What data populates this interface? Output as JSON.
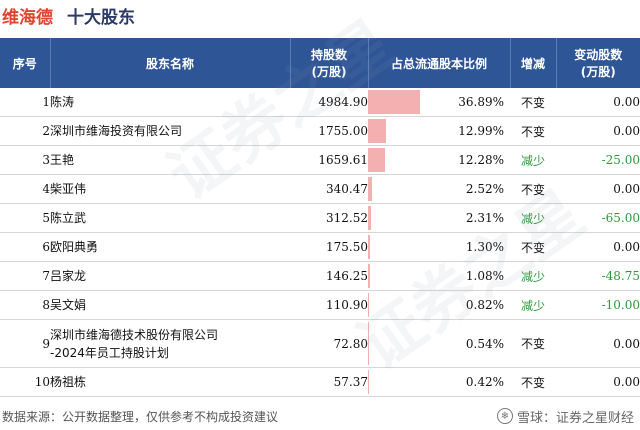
{
  "header": {
    "company": "维海德",
    "title": "十大股东"
  },
  "table": {
    "headers": {
      "rank": "序号",
      "name": "股东名称",
      "shares_line1": "持股数",
      "shares_line2": "(万股)",
      "pct": "占总流通股本比例",
      "change": "增减",
      "delta_line1": "变动股数",
      "delta_line2": "(万股)"
    },
    "rows": [
      {
        "rank": "1",
        "name_line1": "陈涛",
        "name_line2": "",
        "shares": "4984.90",
        "pct": "36.89%",
        "pct_value": 36.89,
        "change": "不变",
        "delta": "0.00"
      },
      {
        "rank": "2",
        "name_line1": "深圳市维海投资有限公司",
        "name_line2": "",
        "shares": "1755.00",
        "pct": "12.99%",
        "pct_value": 12.99,
        "change": "不变",
        "delta": "0.00"
      },
      {
        "rank": "3",
        "name_line1": "王艳",
        "name_line2": "",
        "shares": "1659.61",
        "pct": "12.28%",
        "pct_value": 12.28,
        "change": "减少",
        "delta": "-25.00"
      },
      {
        "rank": "4",
        "name_line1": "柴亚伟",
        "name_line2": "",
        "shares": "340.47",
        "pct": "2.52%",
        "pct_value": 2.52,
        "change": "不变",
        "delta": "0.00"
      },
      {
        "rank": "5",
        "name_line1": "陈立武",
        "name_line2": "",
        "shares": "312.52",
        "pct": "2.31%",
        "pct_value": 2.31,
        "change": "减少",
        "delta": "-65.00"
      },
      {
        "rank": "6",
        "name_line1": "欧阳典勇",
        "name_line2": "",
        "shares": "175.50",
        "pct": "1.30%",
        "pct_value": 1.3,
        "change": "不变",
        "delta": "0.00"
      },
      {
        "rank": "7",
        "name_line1": "吕家龙",
        "name_line2": "",
        "shares": "146.25",
        "pct": "1.08%",
        "pct_value": 1.08,
        "change": "减少",
        "delta": "-48.75"
      },
      {
        "rank": "8",
        "name_line1": "吴文娟",
        "name_line2": "",
        "shares": "110.90",
        "pct": "0.82%",
        "pct_value": 0.82,
        "change": "减少",
        "delta": "-10.00"
      },
      {
        "rank": "9",
        "name_line1": "深圳市维海德技术股份有限公司",
        "name_line2": "-2024年员工持股计划",
        "shares": "72.80",
        "pct": "0.54%",
        "pct_value": 0.54,
        "change": "不变",
        "delta": "0.00"
      },
      {
        "rank": "10",
        "name_line1": "杨祖栋",
        "name_line2": "",
        "shares": "57.37",
        "pct": "0.42%",
        "pct_value": 0.42,
        "change": "不变",
        "delta": "0.00"
      }
    ]
  },
  "footer": {
    "source": "数据来源：公开数据整理，仅供参考不构成投资建议",
    "brand": "雪球：证券之星财经",
    "brand_icon": "snowball-icon"
  },
  "watermark_text": "证券之星",
  "colors": {
    "header_bg": "#2e5596",
    "company_title": "#e0452f",
    "title": "#2a3a66",
    "bar": "#f4b0b0",
    "decrease": "#2e9a3c"
  }
}
